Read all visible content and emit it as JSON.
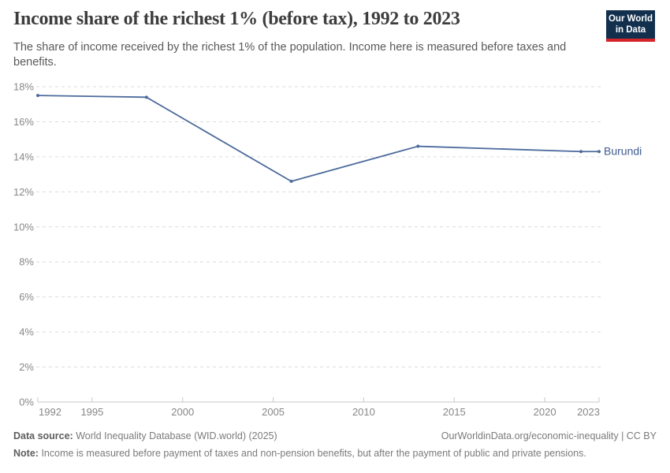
{
  "header": {
    "title": "Income share of the richest 1% (before tax), 1992 to 2023",
    "subtitle": "The share of income received by the richest 1% of the population. Income here is measured before taxes and benefits.",
    "logo": {
      "line1": "Our World",
      "line2": "in Data",
      "bg_color": "#12304e",
      "accent_color": "#d5252b"
    }
  },
  "chart_data": {
    "type": "line",
    "title": "Income share of the richest 1% (before tax), 1992 to 2023",
    "series": [
      {
        "name": "Burundi",
        "color": "#4c6a9c",
        "label_color": "#3d5c8f",
        "points": [
          [
            1992,
            17.5
          ],
          [
            1998,
            17.4
          ],
          [
            2006,
            12.6
          ],
          [
            2013,
            14.6
          ],
          [
            2022,
            14.3
          ],
          [
            2023,
            14.3
          ]
        ]
      }
    ],
    "xlabel": "",
    "ylabel": "",
    "x_ticks": [
      1992,
      1995,
      2000,
      2005,
      2010,
      2015,
      2020,
      2023
    ],
    "y_ticks": [
      0,
      2,
      4,
      6,
      8,
      10,
      12,
      14,
      16,
      18
    ],
    "y_tick_suffix": "%",
    "xlim": [
      1992,
      2023
    ],
    "ylim": [
      0,
      18
    ],
    "grid": "horizontal-dashed",
    "legend": "line-end-label"
  },
  "footer": {
    "data_source_label": "Data source:",
    "data_source_value": "World Inequality Database (WID.world) (2025)",
    "link": "OurWorldinData.org/economic-inequality | CC BY",
    "note_label": "Note:",
    "note_value": "Income is measured before payment of taxes and non-pension benefits, but after the payment of public and private pensions."
  }
}
